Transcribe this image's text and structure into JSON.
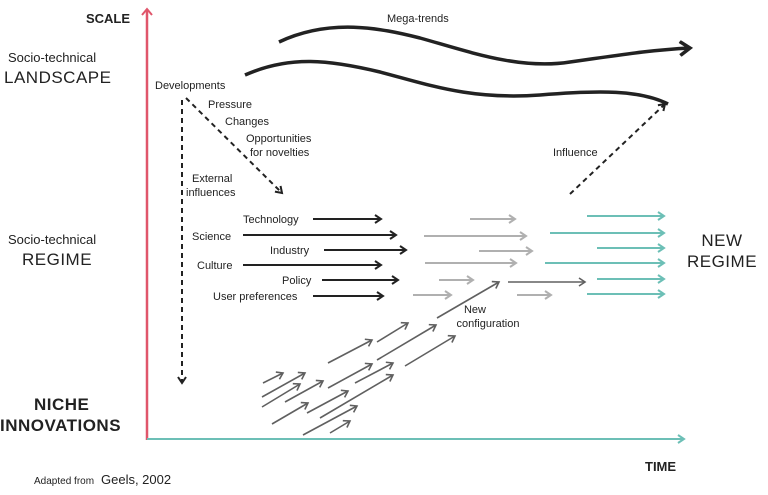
{
  "axes": {
    "y_label": "SCALE",
    "x_label": "TIME",
    "y_color": "#e0566b",
    "x_color": "#6cbfb6"
  },
  "levels": {
    "landscape": {
      "line1": "Socio-technical",
      "line2": "LANDSCAPE"
    },
    "regime": {
      "line1": "Socio-technical",
      "line2": "REGIME"
    },
    "niche": {
      "line1": "NICHE",
      "line2": "INNOVATIONS"
    }
  },
  "landscape": {
    "mega_trends": "Mega-trends",
    "developments": "Developments",
    "pressure": "Pressure",
    "changes": "Changes",
    "opportunities_1": "Opportunities",
    "opportunities_2": "for novelties",
    "external_1": "External",
    "external_2": "influences",
    "influence": "Influence"
  },
  "regime": {
    "dimensions": [
      "Technology",
      "Science",
      "Industry",
      "Culture",
      "Policy",
      "User preferences"
    ],
    "new_config_1": "New",
    "new_config_2": "configuration",
    "new_regime_1": "NEW",
    "new_regime_2": "REGIME"
  },
  "credit": {
    "prefix": "Adapted from",
    "source": "Geels, 2002"
  }
}
